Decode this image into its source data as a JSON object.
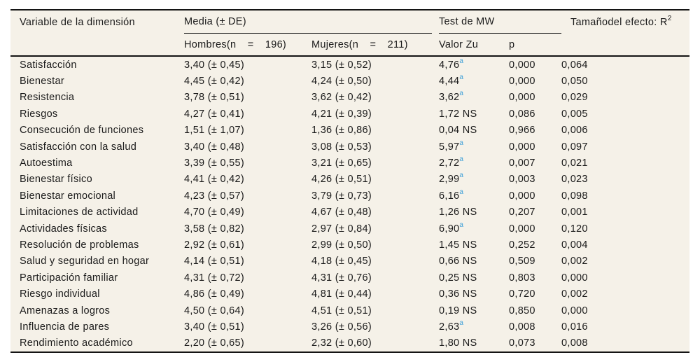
{
  "page": {
    "background": "#ffffff"
  },
  "table": {
    "background": "#f5f1e8",
    "rule_color": "#141414",
    "superscript_color": "#3fa0d8",
    "header": {
      "variable": "Variable de la dimensión",
      "media_group": "Media (± DE)",
      "test_group": "Test de MW",
      "effect_base": "Tamañodel efecto: R",
      "effect_sup": "2",
      "hombres": "Hombres(n = 196)",
      "mujeres": "Mujeres(n = 211)",
      "valor": "Valor Zu",
      "p": "p"
    },
    "rows": [
      {
        "variable": "Satisfacción",
        "hombres": "3,40 (± 0,45)",
        "mujeres": "3,15 (± 0,52)",
        "z": "4,76",
        "z_sup": "a",
        "p": "0,000",
        "r2": "0,064"
      },
      {
        "variable": "Bienestar",
        "hombres": "4,45 (± 0,42)",
        "mujeres": "4,24 (± 0,50)",
        "z": "4,44",
        "z_sup": "a",
        "p": "0,000",
        "r2": "0,050"
      },
      {
        "variable": "Resistencia",
        "hombres": "3,78 (± 0,51)",
        "mujeres": "3,62 (± 0,42)",
        "z": "3,62",
        "z_sup": "a",
        "p": "0,000",
        "r2": "0,029"
      },
      {
        "variable": "Riesgos",
        "hombres": "4,27 (± 0,41)",
        "mujeres": "4,21 (± 0,39)",
        "z": "1,72 NS",
        "z_sup": "",
        "p": "0,086",
        "r2": "0,005"
      },
      {
        "variable": "Consecución de funciones",
        "hombres": "1,51 (± 1,07)",
        "mujeres": "1,36 (± 0,86)",
        "z": "0,04 NS",
        "z_sup": "",
        "p": "0,966",
        "r2": "0,006"
      },
      {
        "variable": "Satisfacción con la salud",
        "hombres": "3,40 (± 0,48)",
        "mujeres": "3,08 (± 0,53)",
        "z": "5,97",
        "z_sup": "a",
        "p": "0,000",
        "r2": "0,097"
      },
      {
        "variable": "Autoestima",
        "hombres": "3,39 (± 0,55)",
        "mujeres": "3,21 (± 0,65)",
        "z": "2,72",
        "z_sup": "a",
        "p": "0,007",
        "r2": "0,021"
      },
      {
        "variable": "Bienestar físico",
        "hombres": "4,41 (± 0,42)",
        "mujeres": "4,26 (± 0,51)",
        "z": "2,99",
        "z_sup": "a",
        "p": "0,003",
        "r2": "0,023"
      },
      {
        "variable": "Bienestar emocional",
        "hombres": "4,23 (± 0,57)",
        "mujeres": "3,79 (± 0,73)",
        "z": "6,16",
        "z_sup": "a",
        "p": "0,000",
        "r2": "0,098"
      },
      {
        "variable": "Limitaciones de actividad",
        "hombres": "4,70 (± 0,49)",
        "mujeres": "4,67 (± 0,48)",
        "z": "1,26 NS",
        "z_sup": "",
        "p": "0,207",
        "r2": "0,001"
      },
      {
        "variable": "Actividades físicas",
        "hombres": "3,58 (± 0,82)",
        "mujeres": "2,97 (± 0,84)",
        "z": "6,90",
        "z_sup": "a",
        "p": "0,000",
        "r2": "0,120"
      },
      {
        "variable": "Resolución de problemas",
        "hombres": "2,92 (± 0,61)",
        "mujeres": "2,99 (± 0,50)",
        "z": "1,45 NS",
        "z_sup": "",
        "p": "0,252",
        "r2": "0,004"
      },
      {
        "variable": "Salud y seguridad en hogar",
        "hombres": "4,14 (± 0,51)",
        "mujeres": "4,18 (± 0,45)",
        "z": "0,66 NS",
        "z_sup": "",
        "p": "0,509",
        "r2": "0,002"
      },
      {
        "variable": "Participación familiar",
        "hombres": "4,31 (± 0,72)",
        "mujeres": "4,31 (± 0,76)",
        "z": "0,25 NS",
        "z_sup": "",
        "p": "0,803",
        "r2": "0,000"
      },
      {
        "variable": "Riesgo individual",
        "hombres": "4,86 (± 0,49)",
        "mujeres": "4,81 (± 0,44)",
        "z": "0,36 NS",
        "z_sup": "",
        "p": "0,720",
        "r2": "0,002"
      },
      {
        "variable": "Amenazas a logros",
        "hombres": "4,50 (± 0,64)",
        "mujeres": "4,51 (± 0,51)",
        "z": "0,19 NS",
        "z_sup": "",
        "p": "0,850",
        "r2": "0,000"
      },
      {
        "variable": "Influencia de pares",
        "hombres": "3,40 (± 0,51)",
        "mujeres": "3,26 (± 0,56)",
        "z": "2,63",
        "z_sup": "a",
        "p": "0,008",
        "r2": "0,016"
      },
      {
        "variable": "Rendimiento académico",
        "hombres": "2,20 (± 0,65)",
        "mujeres": "2,32 (± 0,60)",
        "z": "1,80 NS",
        "z_sup": "",
        "p": "0,073",
        "r2": "0,008"
      }
    ]
  }
}
